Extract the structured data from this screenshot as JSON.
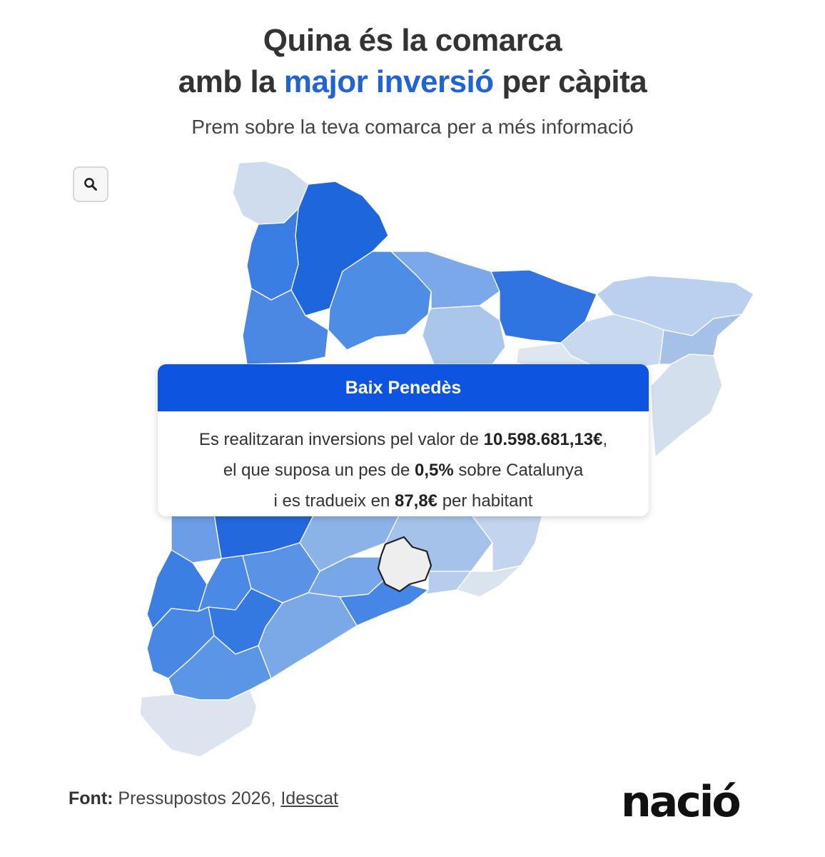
{
  "header": {
    "title_line1": "Quina és la comarca",
    "title_line2_pre": "amb la ",
    "title_line2_highlight": "major inversió",
    "title_line2_post": " per càpita",
    "subtitle": "Prem sobre la teva comarca per a més informació"
  },
  "search": {
    "icon": "search-icon"
  },
  "tooltip": {
    "comarca": "Baix Penedès",
    "line1_pre": "Es realitzaran inversions pel valor de ",
    "line1_value": "10.598.681,13€",
    "line1_post": ",",
    "line2_pre": "el que suposa un pes de ",
    "line2_value": "0,5%",
    "line2_post": " sobre Catalunya",
    "line3_pre": "i es tradueix en ",
    "line3_value": "87,8€",
    "line3_post": " per habitant"
  },
  "footer": {
    "source_label": "Font:",
    "source_text": " Pressupostos 2026, ",
    "source_link": "Idescat",
    "logo": "nació"
  },
  "colors": {
    "accent": "#1f63d6",
    "tooltip_header": "#0d55e0",
    "scale_darkest": "#1763dc",
    "scale_lightest": "#dfe6ef",
    "selected_fill": "#eeeeee"
  }
}
